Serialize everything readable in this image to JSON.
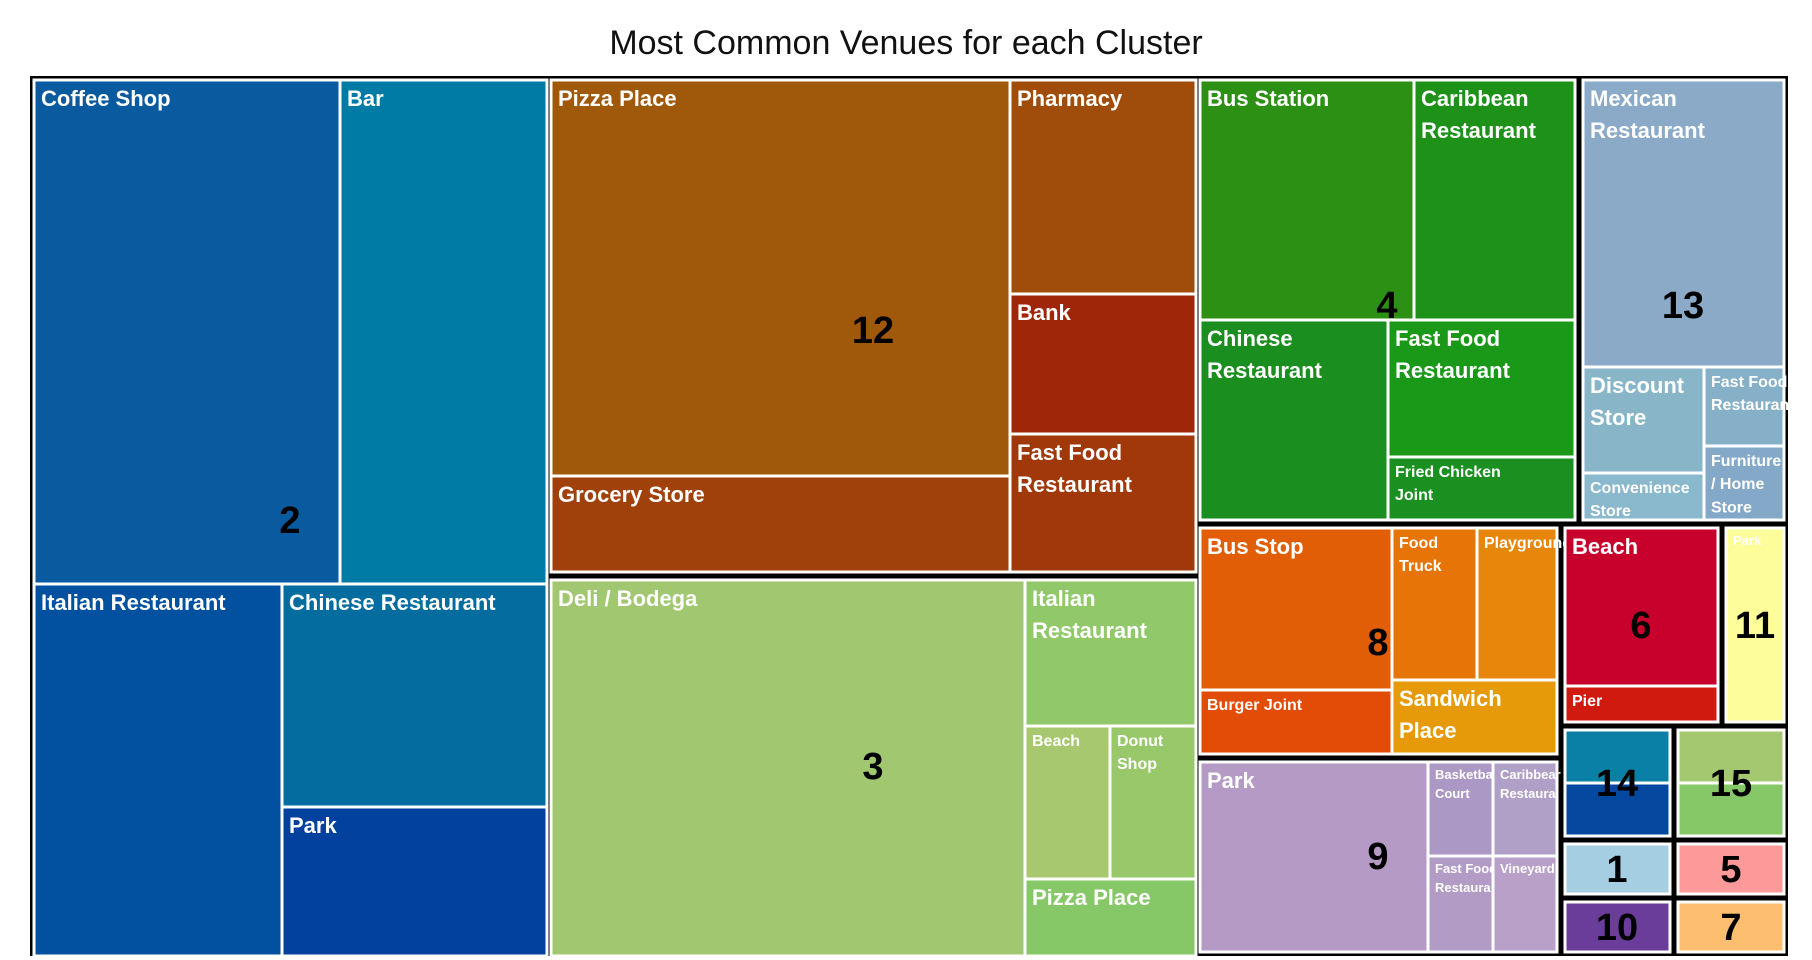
{
  "chart_data": {
    "type": "treemap",
    "title": "Most Common Venues for each Cluster",
    "clusters": [
      {
        "id": "2",
        "color": "#0a5aa0",
        "venues": [
          {
            "name": "Coffee Shop",
            "lines": [
              "Coffee Shop"
            ],
            "color": "#0a5aa0"
          },
          {
            "name": "Bar",
            "lines": [
              "Bar"
            ],
            "color": "#007ba6"
          },
          {
            "name": "Italian Restaurant",
            "lines": [
              "Italian Restaurant"
            ],
            "color": "#0250a0"
          },
          {
            "name": "Chinese Restaurant",
            "lines": [
              "Chinese Restaurant"
            ],
            "color": "#046c9e"
          },
          {
            "name": "Park",
            "lines": [
              "Park"
            ],
            "color": "#02429e"
          }
        ]
      },
      {
        "id": "12",
        "color": "#a0580a",
        "venues": [
          {
            "name": "Pizza Place",
            "lines": [
              "Pizza Place"
            ],
            "color": "#a0580a"
          },
          {
            "name": "Pharmacy",
            "lines": [
              "Pharmacy"
            ],
            "color": "#a04c0a"
          },
          {
            "name": "Bank",
            "lines": [
              "Bank"
            ],
            "color": "#a0260a"
          },
          {
            "name": "Grocery Store",
            "lines": [
              "Grocery Store"
            ],
            "color": "#a0400a"
          },
          {
            "name": "Fast Food Restaurant",
            "lines": [
              "Fast Food",
              "Restaurant"
            ],
            "color": "#a0380a"
          }
        ]
      },
      {
        "id": "3",
        "color": "#a1c870",
        "venues": [
          {
            "name": "Deli / Bodega",
            "lines": [
              "Deli / Bodega"
            ],
            "color": "#a1c870"
          },
          {
            "name": "Italian Restaurant",
            "lines": [
              "Italian",
              "Restaurant"
            ],
            "color": "#90c86a"
          },
          {
            "name": "Beach",
            "lines": [
              "Beach"
            ],
            "color": "#a8c870"
          },
          {
            "name": "Donut Shop",
            "lines": [
              "Donut",
              "Shop"
            ],
            "color": "#98c86a"
          },
          {
            "name": "Pizza Place",
            "lines": [
              "Pizza Place"
            ],
            "color": "#86c868"
          }
        ]
      },
      {
        "id": "4",
        "color": "#2a9018",
        "venues": [
          {
            "name": "Bus Station",
            "lines": [
              "Bus Station"
            ],
            "color": "#2c9014"
          },
          {
            "name": "Caribbean Restaurant",
            "lines": [
              "Caribbean",
              "Restaurant"
            ],
            "color": "#1e9218"
          },
          {
            "name": "Chinese Restaurant",
            "lines": [
              "Chinese",
              "Restaurant"
            ],
            "color": "#1a8e1e"
          },
          {
            "name": "Fast Food Restaurant",
            "lines": [
              "Fast Food",
              "Restaurant"
            ],
            "color": "#1a9818"
          },
          {
            "name": "Fried Chicken Joint",
            "lines": [
              "Fried Chicken",
              "Joint"
            ],
            "color": "#1a9020"
          }
        ]
      },
      {
        "id": "13",
        "color": "#8aaac8",
        "venues": [
          {
            "name": "Mexican Restaurant",
            "lines": [
              "Mexican",
              "Restaurant"
            ],
            "color": "#8aaac8"
          },
          {
            "name": "Discount Store",
            "lines": [
              "Discount",
              "Store"
            ],
            "color": "#88b6c8"
          },
          {
            "name": "Fast Food Restaurant",
            "lines": [
              "Fast Food",
              "Restauran"
            ],
            "color": "#86b0c8"
          },
          {
            "name": "Convenience Store",
            "lines": [
              "Convenience",
              "Store"
            ],
            "color": "#8ab8cc"
          },
          {
            "name": "Furniture / Home Store",
            "lines": [
              "Furniture",
              "/ Home",
              "Store"
            ],
            "color": "#84a8c8"
          }
        ]
      },
      {
        "id": "8",
        "color": "#e25e06",
        "venues": [
          {
            "name": "Bus Stop",
            "lines": [
              "Bus Stop"
            ],
            "color": "#e25e06"
          },
          {
            "name": "Food Truck",
            "lines": [
              "Food",
              "Truck"
            ],
            "color": "#e67406"
          },
          {
            "name": "Playground",
            "lines": [
              "Playground"
            ],
            "color": "#e6860a"
          },
          {
            "name": "Burger Joint",
            "lines": [
              "Burger Joint"
            ],
            "color": "#e24c06"
          },
          {
            "name": "Sandwich Place",
            "lines": [
              "Sandwich",
              "Place"
            ],
            "color": "#e69a0a"
          }
        ]
      },
      {
        "id": "6",
        "color": "#c8002c",
        "venues": [
          {
            "name": "Beach",
            "lines": [
              "Beach"
            ],
            "color": "#c8002c"
          },
          {
            "name": "Pier",
            "lines": [
              "Pier"
            ],
            "color": "#d01a10"
          }
        ]
      },
      {
        "id": "11",
        "color": "#fdfd9a",
        "venues": [
          {
            "name": "Park",
            "lines": [
              "Park"
            ],
            "color": "#fdfd9a"
          }
        ]
      },
      {
        "id": "9",
        "color": "#b49ac4",
        "venues": [
          {
            "name": "Park",
            "lines": [
              "Park"
            ],
            "color": "#b49ac4"
          },
          {
            "name": "Basketball Court",
            "lines": [
              "Basketbal",
              "Court"
            ],
            "color": "#ac98c4"
          },
          {
            "name": "Caribbean Restaurant",
            "lines": [
              "Caribbear",
              "Restaura"
            ],
            "color": "#b0a0c8"
          },
          {
            "name": "Fast Food Restaurant",
            "lines": [
              "Fast Food",
              "Restauran"
            ],
            "color": "#b29cc6"
          },
          {
            "name": "Vineyard",
            "lines": [
              "Vineyard"
            ],
            "color": "#b8a0c8"
          }
        ]
      },
      {
        "id": "14",
        "color": "#0a78a8",
        "venues": [],
        "split_colors": [
          "#0a80a6",
          "#0448a0"
        ]
      },
      {
        "id": "15",
        "color": "#9cca6c",
        "venues": [],
        "split_colors": [
          "#a4c870",
          "#86c868"
        ]
      },
      {
        "id": "1",
        "color": "#a6cee3",
        "venues": []
      },
      {
        "id": "5",
        "color": "#fb9a99",
        "venues": []
      },
      {
        "id": "10",
        "color": "#6a3d9a",
        "venues": []
      },
      {
        "id": "7",
        "color": "#fdbf6f",
        "venues": []
      }
    ]
  }
}
